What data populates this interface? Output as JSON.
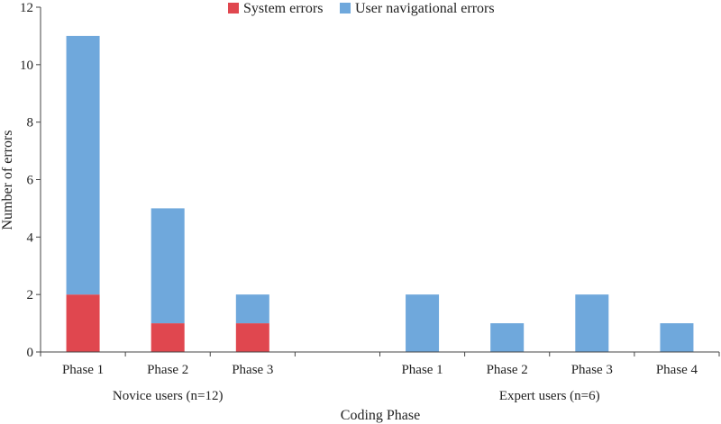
{
  "chart_data": {
    "type": "bar",
    "stacked": true,
    "categories": [
      "Phase 1",
      "Phase 2",
      "Phase 3",
      "",
      "Phase 1",
      "Phase 2",
      "Phase 3",
      "Phase 4"
    ],
    "groups": [
      {
        "label": "Novice users (n=12)",
        "categories": [
          0,
          1,
          2
        ]
      },
      {
        "label": "Expert users (n=6)",
        "categories": [
          4,
          5,
          6,
          7
        ]
      }
    ],
    "series": [
      {
        "name": "System errors",
        "color": "#e0474f",
        "values": [
          2,
          1,
          1,
          0,
          0,
          0,
          0,
          0
        ]
      },
      {
        "name": "User navigational errors",
        "color": "#6fa8dc",
        "values": [
          9,
          4,
          1,
          0,
          2,
          1,
          2,
          1
        ]
      }
    ],
    "xlabel": "Coding Phase",
    "ylabel": "Number of errors",
    "ylim": [
      0,
      12
    ],
    "yticks": [
      0,
      2,
      4,
      6,
      8,
      10,
      12
    ],
    "grid": false,
    "legend_position": "top-center"
  }
}
